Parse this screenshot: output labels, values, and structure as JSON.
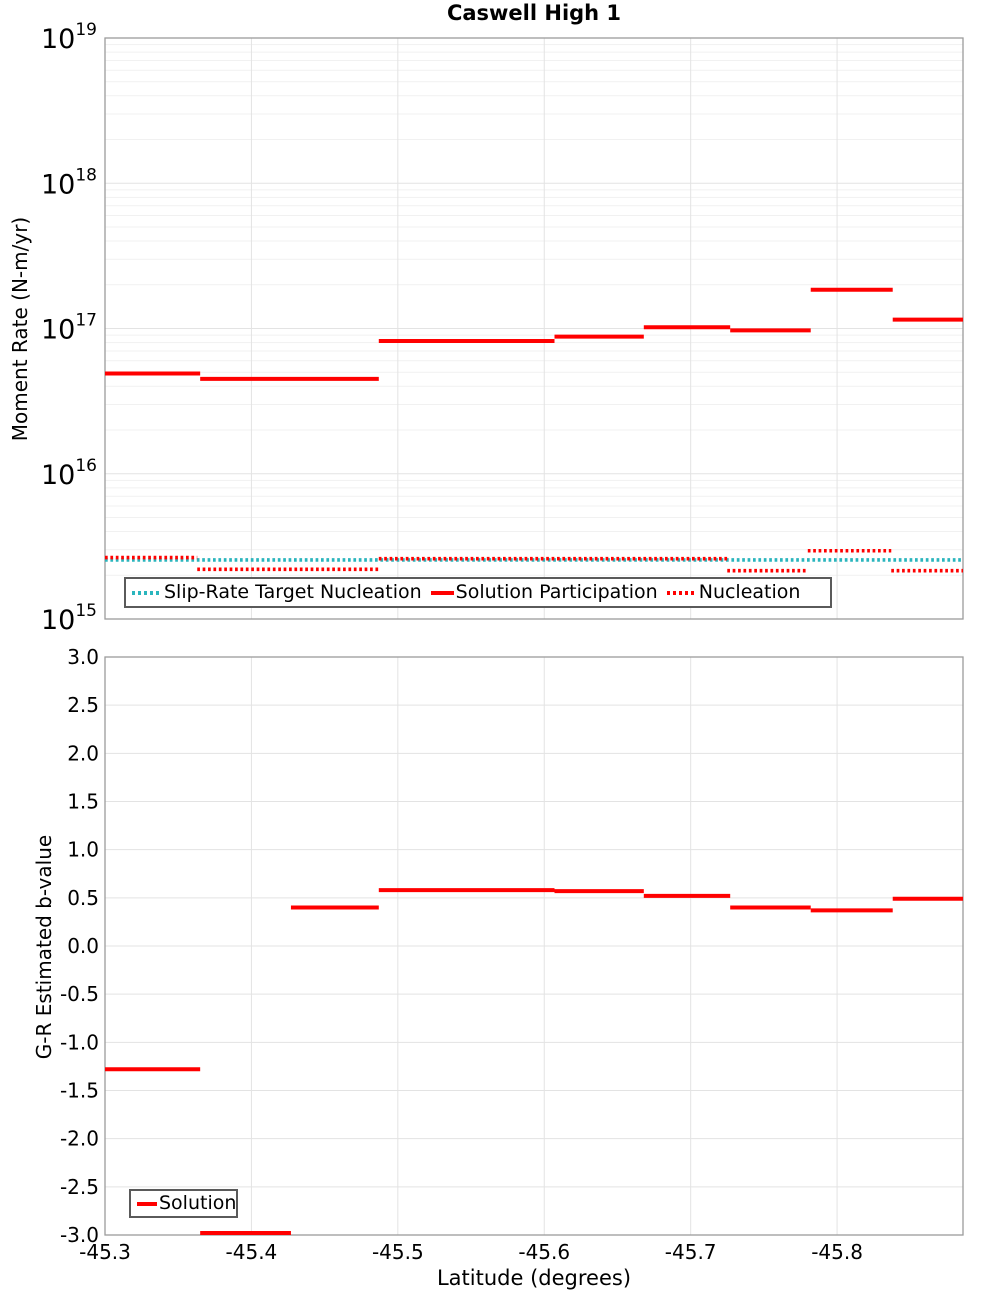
{
  "title": "Caswell High 1",
  "colors": {
    "solution": "#ff0000",
    "slip_rate_target": "#2ab5bd",
    "nucleation": "#ff0000",
    "grid_major": "#e3e3e3",
    "grid_minor": "#f1f1f1",
    "plot_border": "#9c9c9c",
    "legend_border": "#5a5a5a",
    "text": "#000000"
  },
  "axes": {
    "x": {
      "title": "Latitude (degrees)",
      "tick_values": [
        -45.3,
        -45.4,
        -45.5,
        -45.6,
        -45.7,
        -45.8
      ],
      "tick_labels": [
        "-45.3",
        "-45.4",
        "-45.5",
        "-45.6",
        "-45.7",
        "-45.8"
      ]
    },
    "top_y": {
      "title": "Moment Rate (N-m/yr)",
      "scale": "log",
      "tick_base": "10",
      "tick_exponents": [
        19,
        18,
        17,
        16,
        15
      ]
    },
    "bottom_y": {
      "title": "G-R Estimated b-value",
      "scale": "linear",
      "tick_values": [
        3.0,
        2.5,
        2.0,
        1.5,
        1.0,
        0.5,
        0.0,
        -0.5,
        -1.0,
        -1.5,
        -2.0,
        -2.5,
        -3.0
      ],
      "tick_labels": [
        "3.0",
        "2.5",
        "2.0",
        "1.5",
        "1.0",
        "0.5",
        "0.0",
        "-0.5",
        "-1.0",
        "-1.5",
        "-2.0",
        "-2.5",
        "-3.0"
      ]
    }
  },
  "chart_data": [
    {
      "type": "line",
      "title": "Caswell High 1",
      "xlabel": "Latitude (degrees)",
      "ylabel": "Moment Rate (N-m/yr)",
      "yscale": "log",
      "xlim": [
        -45.3,
        -45.886
      ],
      "ylim": [
        1000000000000000.0,
        1e+19
      ],
      "grid": true,
      "legend_position": "bottom-left",
      "series": [
        {
          "name": "Slip-Rate Target Nucleation",
          "style": "dotted",
          "color_key": "slip_rate_target",
          "segments": [
            [
              -45.3,
              -45.886,
              2550000000000000.0
            ]
          ]
        },
        {
          "name": "Solution Participation",
          "style": "solid",
          "color_key": "solution",
          "segments": [
            [
              -45.3,
              -45.365,
              4.9e+16
            ],
            [
              -45.365,
              -45.487,
              4.5e+16
            ],
            [
              -45.487,
              -45.607,
              8.2e+16
            ],
            [
              -45.607,
              -45.668,
              8.8e+16
            ],
            [
              -45.668,
              -45.727,
              1.02e+17
            ],
            [
              -45.727,
              -45.782,
              9.7e+16
            ],
            [
              -45.782,
              -45.838,
              1.85e+17
            ],
            [
              -45.838,
              -45.886,
              1.15e+17
            ]
          ]
        },
        {
          "name": "Nucleation",
          "style": "dotted",
          "color_key": "nucleation",
          "segments": [
            [
              -45.3,
              -45.363,
              2650000000000000.0
            ],
            [
              -45.363,
              -45.487,
              2200000000000000.0
            ],
            [
              -45.487,
              -45.725,
              2600000000000000.0
            ],
            [
              -45.725,
              -45.78,
              2150000000000000.0
            ],
            [
              -45.78,
              -45.837,
              2950000000000000.0
            ],
            [
              -45.837,
              -45.886,
              2150000000000000.0
            ]
          ]
        }
      ]
    },
    {
      "type": "line",
      "title": "",
      "xlabel": "Latitude (degrees)",
      "ylabel": "G-R Estimated b-value",
      "yscale": "linear",
      "xlim": [
        -45.3,
        -45.886
      ],
      "ylim": [
        -3.0,
        3.0
      ],
      "grid": true,
      "legend_position": "bottom-left",
      "series": [
        {
          "name": "Solution",
          "style": "solid",
          "color_key": "solution",
          "segments": [
            [
              -45.3,
              -45.365,
              -1.28
            ],
            [
              -45.365,
              -45.427,
              -3.0
            ],
            [
              -45.427,
              -45.487,
              0.4
            ],
            [
              -45.487,
              -45.607,
              0.58
            ],
            [
              -45.607,
              -45.668,
              0.57
            ],
            [
              -45.668,
              -45.727,
              0.52
            ],
            [
              -45.727,
              -45.782,
              0.4
            ],
            [
              -45.782,
              -45.838,
              0.37
            ],
            [
              -45.838,
              -45.886,
              0.49
            ]
          ]
        }
      ]
    }
  ]
}
